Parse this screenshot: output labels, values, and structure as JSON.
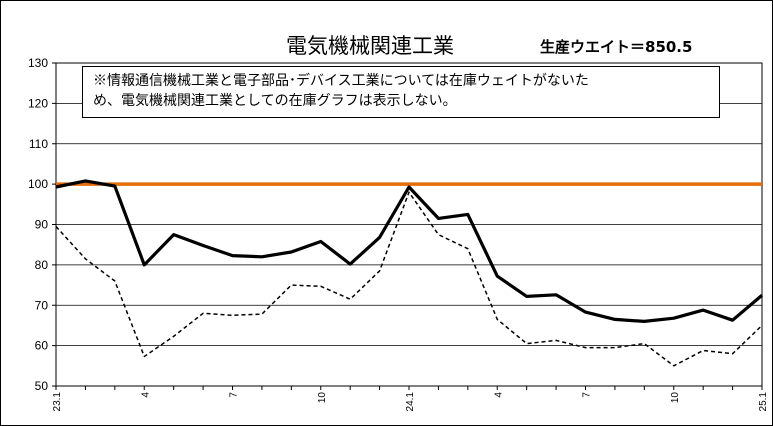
{
  "chart_data": {
    "type": "line",
    "title": "電気機械関連工業",
    "weight_label": "生産ウエイト＝850.5",
    "note_lines": [
      "※情報通信機械工業と電子部品･デバイス工業については在庫ウェイトがないた",
      "め、電気機械関連工業としての在庫グラフは表示しない。"
    ],
    "ylim": [
      50,
      130
    ],
    "yticks": [
      50,
      60,
      70,
      80,
      90,
      100,
      110,
      120,
      130
    ],
    "grid": true,
    "x_tick_labels": [
      {
        "index": 0,
        "label": "23.1"
      },
      {
        "index": 3,
        "label": "4"
      },
      {
        "index": 6,
        "label": "7"
      },
      {
        "index": 9,
        "label": "10"
      },
      {
        "index": 12,
        "label": "24.1"
      },
      {
        "index": 15,
        "label": "4"
      },
      {
        "index": 18,
        "label": "7"
      },
      {
        "index": 21,
        "label": "10"
      },
      {
        "index": 24,
        "label": "25.1"
      }
    ],
    "reference_line": {
      "value": 100,
      "color": "#e46c0a"
    },
    "series": [
      {
        "style": "solid",
        "color": "#000000",
        "values": [
          99.3,
          100.8,
          99.5,
          80.0,
          87.5,
          84.8,
          82.3,
          82.0,
          83.2,
          85.8,
          80.2,
          86.8,
          99.3,
          91.5,
          92.5,
          77.2,
          72.2,
          72.6,
          68.3,
          66.5,
          66.0,
          66.8,
          68.8,
          66.3,
          72.5
        ]
      },
      {
        "style": "dashed",
        "color": "#000000",
        "values": [
          89.5,
          81.5,
          76.0,
          57.3,
          62.3,
          68.0,
          67.5,
          67.8,
          75.0,
          74.7,
          71.5,
          78.5,
          98.0,
          87.5,
          84.0,
          66.5,
          60.5,
          61.3,
          59.5,
          59.5,
          60.5,
          55.0,
          58.8,
          58.0,
          65.0
        ]
      }
    ]
  }
}
